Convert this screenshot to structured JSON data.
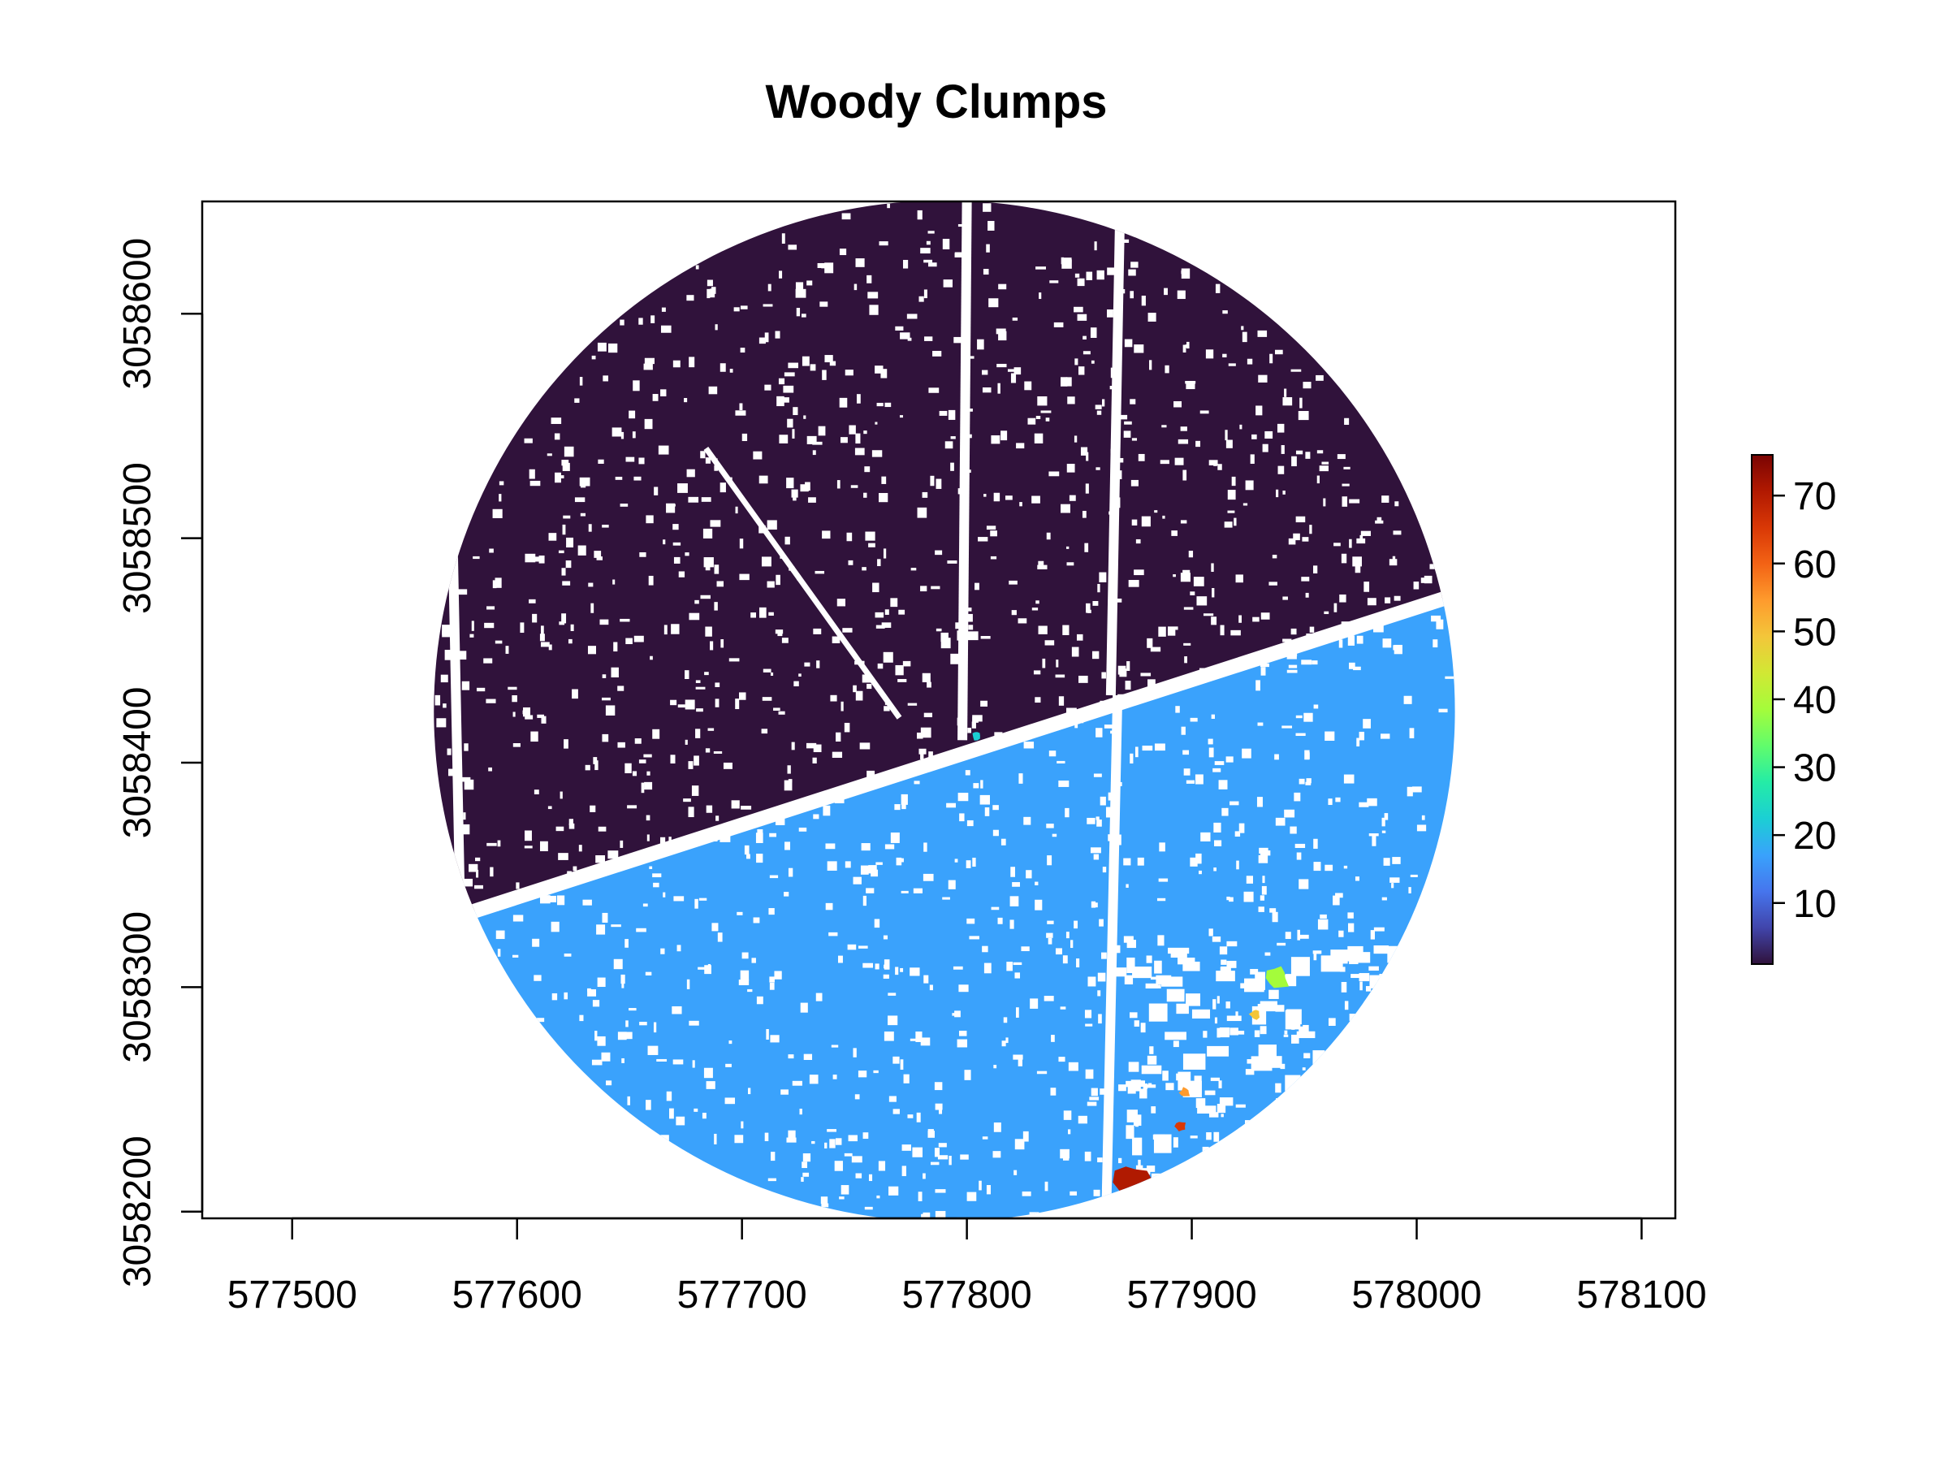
{
  "chart_data": {
    "type": "raster-map",
    "title": "Woody Clumps",
    "xlabel": "",
    "ylabel": "",
    "x_ticks": [
      577500,
      577600,
      577700,
      577800,
      577900,
      578000,
      578100
    ],
    "x_tick_labels": [
      "577500",
      "577600",
      "577700",
      "577800",
      "577900",
      "578000",
      "578100"
    ],
    "y_ticks": [
      3058200,
      3058300,
      3058400,
      3058500,
      3058600
    ],
    "y_tick_labels": [
      "3058200",
      "3058300",
      "3058400",
      "3058500",
      "3058600"
    ],
    "xlim": [
      577460,
      578115
    ],
    "ylim": [
      3058197,
      3058650
    ],
    "plot_circle": {
      "center_x": 577790,
      "center_y": 3058423,
      "radius": 227
    },
    "legend": {
      "placement": "right",
      "range": [
        1,
        76
      ],
      "ticks": [
        10,
        20,
        30,
        40,
        50,
        60,
        70
      ],
      "tick_labels": [
        "10",
        "20",
        "30",
        "40",
        "50",
        "60",
        "70"
      ],
      "colors": [
        "#30123b",
        "#4145ab",
        "#4675ed",
        "#39a2fc",
        "#1bcfd4",
        "#24eca6",
        "#61fc6c",
        "#a4fc3b",
        "#d1e834",
        "#f3c63a",
        "#fe9b2d",
        "#f36315",
        "#d93806",
        "#b11901",
        "#7a0403"
      ]
    },
    "regions": [
      {
        "name": "clump-1",
        "value": 1,
        "color": "#30123b",
        "description_area": "north"
      },
      {
        "name": "clump-21",
        "value": 21,
        "color": "#3aa2fc",
        "description_area": "south"
      },
      {
        "name": "clump-40",
        "value": 40,
        "color": "#a4fc3b",
        "center": [
          577938,
          3058304
        ]
      },
      {
        "name": "clump-75",
        "value": 75,
        "color": "#b01a01",
        "center": [
          577873,
          3058213
        ]
      },
      {
        "name": "clump-50",
        "value": 50,
        "color": "#f3c63a",
        "center": [
          577928,
          3058288
        ]
      },
      {
        "name": "clump-55",
        "value": 55,
        "color": "#fe9b2d",
        "center": [
          577897,
          3058253
        ]
      },
      {
        "name": "clump-65",
        "value": 65,
        "color": "#d93806",
        "center": [
          577895,
          3058238
        ]
      },
      {
        "name": "clump-18",
        "value": 18,
        "color": "#1bcfd4",
        "center": [
          577804,
          3058412
        ]
      }
    ],
    "roads": [
      {
        "name": "diagonal-road",
        "from": [
          577569,
          3058330
        ],
        "to": [
          578015,
          3058474
        ]
      },
      {
        "name": "north-south-road-west",
        "from": [
          577575,
          3058320
        ],
        "to": [
          577571,
          3058520
        ]
      },
      {
        "name": "north-south-road-mid-north",
        "from": [
          577798,
          3058410
        ],
        "to": [
          577800,
          3058650
        ]
      },
      {
        "name": "north-south-road-east-north",
        "from": [
          577864,
          3058430
        ],
        "to": [
          577868,
          3058640
        ]
      },
      {
        "name": "north-south-road-east-south",
        "from": [
          577862,
          3058200
        ],
        "to": [
          577867,
          3058430
        ]
      },
      {
        "name": "north-clearing-diagonal",
        "from": [
          577684,
          3058540
        ],
        "to": [
          577770,
          3058420
        ]
      }
    ]
  }
}
